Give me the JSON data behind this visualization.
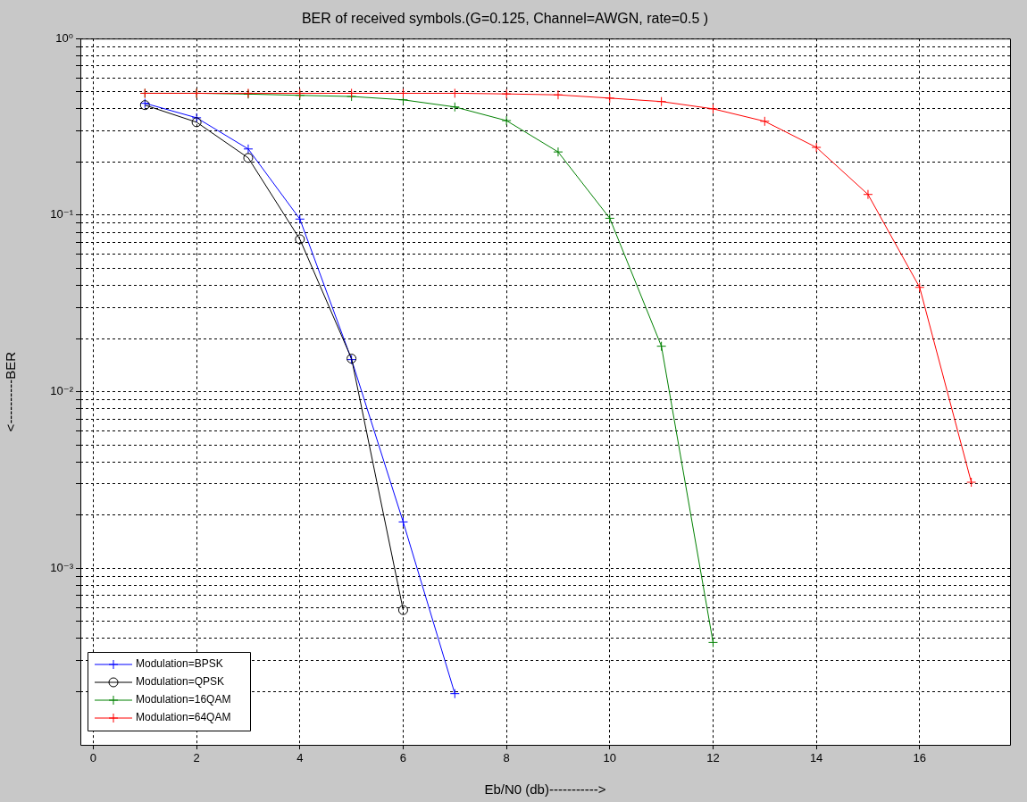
{
  "chart_data": {
    "type": "line",
    "title": "BER of received symbols.(G=0.125, Channel=AWGN, rate=0.5 )",
    "xlabel": "Eb/N0 (db)----------->",
    "ylabel": "<----------BER",
    "log": "y",
    "grid": true,
    "legend": "bottom left",
    "line_style": "solid",
    "xlim": [
      -0.25,
      17.75
    ],
    "xticks": [
      0,
      2,
      4,
      6,
      8,
      10,
      12,
      14,
      16
    ],
    "ylim": [
      0.0001,
      1
    ],
    "yticks": [
      {
        "value": 0.0002,
        "label": null
      },
      {
        "value": 0.0003,
        "label": null
      },
      {
        "value": 0.0004,
        "label": null
      },
      {
        "value": 0.0005,
        "label": null
      },
      {
        "value": 0.0006,
        "label": null
      },
      {
        "value": 0.0007,
        "label": null
      },
      {
        "value": 0.0008,
        "label": null
      },
      {
        "value": 0.0009,
        "label": null
      },
      {
        "value": 0.001,
        "label": "10⁻³"
      },
      {
        "value": 0.002,
        "label": null
      },
      {
        "value": 0.003,
        "label": null
      },
      {
        "value": 0.004,
        "label": null
      },
      {
        "value": 0.005,
        "label": null
      },
      {
        "value": 0.006,
        "label": null
      },
      {
        "value": 0.007,
        "label": null
      },
      {
        "value": 0.008,
        "label": null
      },
      {
        "value": 0.009,
        "label": null
      },
      {
        "value": 0.01,
        "label": "10⁻²"
      },
      {
        "value": 0.02,
        "label": null
      },
      {
        "value": 0.03,
        "label": null
      },
      {
        "value": 0.04,
        "label": null
      },
      {
        "value": 0.05,
        "label": null
      },
      {
        "value": 0.06,
        "label": null
      },
      {
        "value": 0.07,
        "label": null
      },
      {
        "value": 0.08,
        "label": null
      },
      {
        "value": 0.09,
        "label": null
      },
      {
        "value": 0.1,
        "label": "10⁻¹"
      },
      {
        "value": 0.2,
        "label": null
      },
      {
        "value": 0.3,
        "label": null
      },
      {
        "value": 0.4,
        "label": null
      },
      {
        "value": 0.5,
        "label": null
      },
      {
        "value": 0.6,
        "label": null
      },
      {
        "value": 0.7,
        "label": null
      },
      {
        "value": 0.8,
        "label": null
      },
      {
        "value": 0.9,
        "label": null
      },
      {
        "value": 1,
        "label": "10⁰"
      }
    ],
    "series": [
      {
        "name": "Modulation=BPSK",
        "color": "#0000ff",
        "marker": "cross",
        "x": [
          1,
          2,
          3,
          4,
          5,
          6,
          7
        ],
        "values": [
          0.43,
          0.356,
          0.237,
          0.095,
          0.0152,
          0.00183,
          0.000195
        ]
      },
      {
        "name": "Modulation=QPSK",
        "color": "#000000",
        "marker": "circle",
        "x": [
          1,
          2,
          3,
          4,
          5,
          6
        ],
        "values": [
          0.42,
          0.336,
          0.211,
          0.073,
          0.0154,
          0.00058
        ]
      },
      {
        "name": "Modulation=16QAM",
        "color": "#008000",
        "marker": "cross",
        "x": [
          1,
          2,
          3,
          4,
          5,
          6,
          7,
          8,
          9,
          10,
          11,
          12
        ],
        "values": [
          0.49,
          0.49,
          0.485,
          0.477,
          0.47,
          0.45,
          0.41,
          0.343,
          0.228,
          0.096,
          0.0181,
          0.00038
        ]
      },
      {
        "name": "Modulation=64QAM",
        "color": "#ff0000",
        "marker": "cross",
        "x": [
          1,
          2,
          3,
          4,
          5,
          6,
          7,
          8,
          9,
          10,
          11,
          12,
          13,
          14,
          15,
          16,
          17
        ],
        "values": [
          0.49,
          0.49,
          0.49,
          0.49,
          0.49,
          0.49,
          0.49,
          0.486,
          0.48,
          0.46,
          0.44,
          0.4,
          0.34,
          0.242,
          0.131,
          0.039,
          0.00307
        ]
      }
    ]
  }
}
